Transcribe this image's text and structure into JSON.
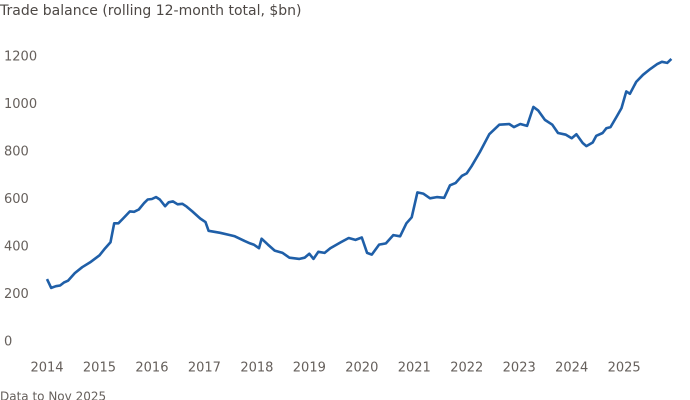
{
  "chart_data": {
    "type": "line",
    "title": "Trade balance (rolling 12-month total, $bn)",
    "source": "Data to Nov 2025",
    "x": [
      2014.0,
      2014.08,
      2014.17,
      2014.25,
      2014.32,
      2014.4,
      2014.53,
      2014.67,
      2014.82,
      2015.0,
      2015.11,
      2015.21,
      2015.28,
      2015.36,
      2015.45,
      2015.58,
      2015.66,
      2015.75,
      2015.85,
      2015.92,
      2016.0,
      2016.08,
      2016.15,
      2016.25,
      2016.32,
      2016.4,
      2016.49,
      2016.58,
      2016.66,
      2016.77,
      2016.92,
      2017.02,
      2017.08,
      2017.3,
      2017.49,
      2017.58,
      2017.77,
      2017.87,
      2017.94,
      2018.04,
      2018.09,
      2018.21,
      2018.34,
      2018.49,
      2018.62,
      2018.81,
      2018.91,
      2019.0,
      2019.08,
      2019.17,
      2019.29,
      2019.4,
      2019.6,
      2019.75,
      2019.88,
      2020.0,
      2020.1,
      2020.19,
      2020.33,
      2020.46,
      2020.6,
      2020.73,
      2020.85,
      2020.95,
      2021.06,
      2021.17,
      2021.3,
      2021.43,
      2021.57,
      2021.68,
      2021.79,
      2021.91,
      2022.0,
      2022.09,
      2022.25,
      2022.43,
      2022.62,
      2022.81,
      2022.9,
      2023.02,
      2023.15,
      2023.27,
      2023.36,
      2023.49,
      2023.63,
      2023.74,
      2023.89,
      2024.0,
      2024.09,
      2024.21,
      2024.28,
      2024.4,
      2024.47,
      2024.59,
      2024.66,
      2024.74,
      2024.86,
      2024.95,
      2025.04,
      2025.11,
      2025.23,
      2025.36,
      2025.5,
      2025.63,
      2025.72,
      2025.82,
      2025.9
    ],
    "series": [
      {
        "name": "Trade balance",
        "color": "#1f5fa8",
        "values": [
          265,
          228,
          235,
          238,
          250,
          258,
          290,
          315,
          335,
          365,
          395,
          420,
          500,
          500,
          520,
          550,
          548,
          558,
          585,
          600,
          602,
          610,
          600,
          572,
          588,
          592,
          580,
          582,
          570,
          550,
          520,
          505,
          468,
          460,
          450,
          445,
          425,
          415,
          410,
          395,
          435,
          410,
          385,
          375,
          355,
          350,
          355,
          372,
          350,
          380,
          375,
          395,
          420,
          438,
          430,
          440,
          375,
          368,
          410,
          415,
          450,
          445,
          500,
          525,
          630,
          625,
          605,
          610,
          607,
          660,
          670,
          700,
          710,
          740,
          800,
          875,
          915,
          918,
          905,
          918,
          910,
          990,
          975,
          935,
          915,
          880,
          873,
          858,
          875,
          838,
          825,
          840,
          868,
          880,
          900,
          905,
          950,
          985,
          1055,
          1045,
          1095,
          1125,
          1150,
          1170,
          1180,
          1175,
          1192
        ]
      }
    ],
    "xlim": [
      2014,
      2025.95
    ],
    "ylim": [
      0,
      1200
    ],
    "xticks": [
      2014,
      2015,
      2016,
      2017,
      2018,
      2019,
      2020,
      2021,
      2022,
      2023,
      2024,
      2025
    ],
    "yticks": [
      0,
      200,
      400,
      600,
      800,
      1000,
      1200
    ],
    "grid": false
  }
}
